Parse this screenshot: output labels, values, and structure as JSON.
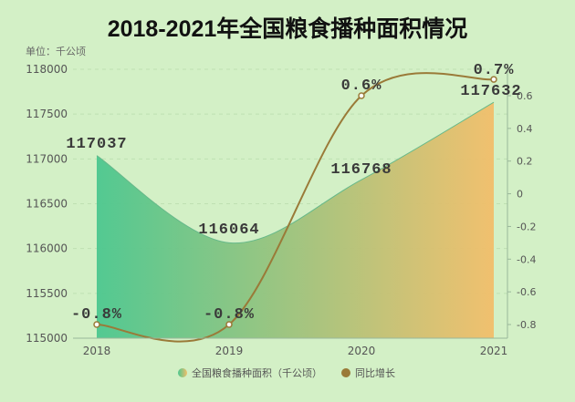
{
  "chart_data": {
    "type": "area+line",
    "title": "2018-2021年全国粮食播种面积情况",
    "unit_label": "单位：千公顷",
    "categories": [
      "2018",
      "2019",
      "2020",
      "2021"
    ],
    "series": [
      {
        "name": "全国粮食播种面积（千公顷）",
        "type": "area",
        "axis": "left",
        "values": [
          117037,
          116064,
          116768,
          117632
        ],
        "labels": [
          "117037",
          "116064",
          "116768",
          "117632"
        ],
        "gradient": [
          "#4cc78f",
          "#f2be6a"
        ]
      },
      {
        "name": "同比增长",
        "type": "line",
        "axis": "right",
        "values": [
          -0.8,
          -0.8,
          0.6,
          0.7
        ],
        "labels": [
          "-0.8%",
          "-0.8%",
          "0.6%",
          "0.7%"
        ],
        "color": "#9a7a38"
      }
    ],
    "y_left": {
      "min": 115000,
      "max": 118000,
      "ticks": [
        115000,
        115500,
        116000,
        116500,
        117000,
        117500,
        118000
      ],
      "tick_labels": [
        "115000",
        "115500",
        "116000",
        "116500",
        "117000",
        "117500",
        "118000"
      ]
    },
    "y_right": {
      "min": -0.9,
      "max": 0.75,
      "ticks": [
        -0.8,
        -0.6,
        -0.4,
        -0.2,
        0,
        0.2,
        0.4,
        0.6
      ],
      "tick_labels": [
        "-0.8",
        "-0.6",
        "-0.4",
        "-0.2",
        "0",
        "0.2",
        "0.4",
        "0.6"
      ]
    },
    "grid": true,
    "legend_position": "bottom"
  },
  "colors": {
    "background": "#d3f0c6",
    "title": "#111111",
    "axis_text": "#555555",
    "data_label": "#3a3a3a",
    "grid": "#bfe0b2"
  }
}
